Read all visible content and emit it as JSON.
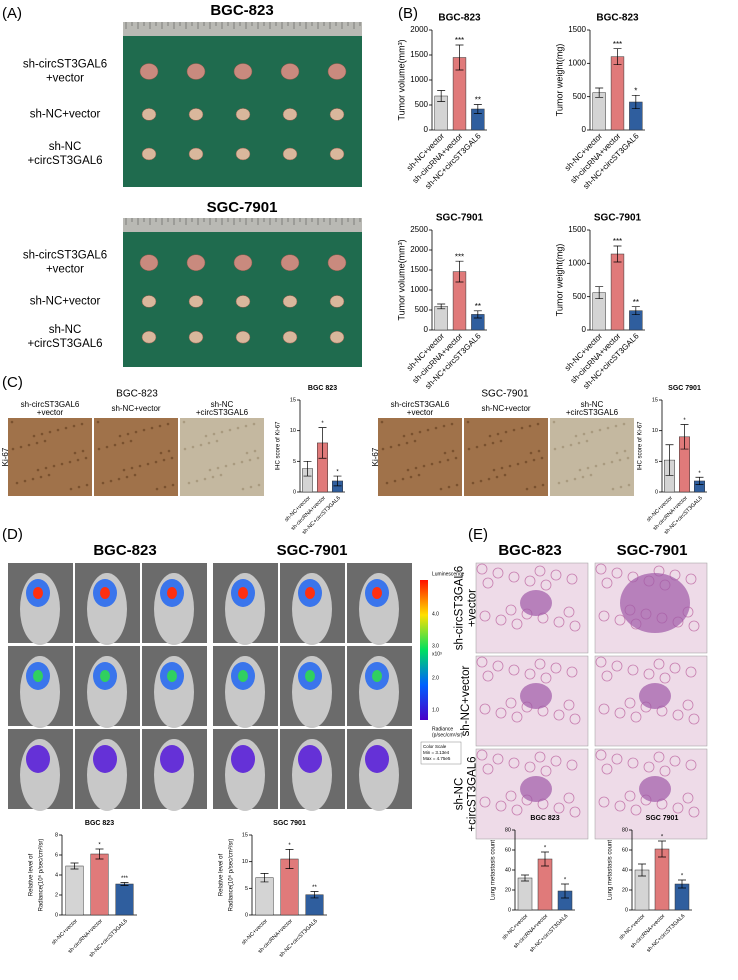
{
  "panel_labels": [
    "(A)",
    "(B)",
    "(C)",
    "(D)",
    "(E)"
  ],
  "panel_a": {
    "titles": [
      "BGC-823",
      "SGC-7901"
    ],
    "rows": [
      [
        "sh-circST3GAL6",
        "+vector"
      ],
      [
        "sh-NC+vector"
      ],
      [
        "sh-NC",
        "+circST3GAL6"
      ]
    ]
  },
  "panel_c": {
    "titles": [
      "BGC-823",
      "SGC-7901"
    ],
    "marker": "Ki-67",
    "columns": [
      [
        "sh-circST3GAL6",
        "+vector"
      ],
      [
        "sh-NC+vector"
      ],
      [
        "sh-NC",
        "+circST3GAL6"
      ]
    ]
  },
  "panel_d": {
    "titles": [
      "BGC-823",
      "SGC-7901"
    ],
    "colorbar_title": "Luminescence",
    "colorbar_unit": "x10³",
    "colorbar_ticks": [
      "1.0",
      "2.0",
      "3.0",
      "4.0"
    ],
    "radiance_label": [
      "Radiance",
      "(p/sec/cm²/sr)"
    ],
    "color_scale": [
      "Color Scale",
      "Min = 3.13e4",
      "Max = 4.75e5"
    ]
  },
  "panel_e": {
    "titles": [
      "BGC-823",
      "SGC-7901"
    ],
    "rows": [
      [
        "sh-circST3GAL6",
        "+vector"
      ],
      [
        "sh-NC+vector"
      ],
      [
        "sh-NC",
        "+circST3GAL6"
      ]
    ]
  },
  "chart_data": [
    {
      "type": "bar",
      "title": "BGC-823",
      "ylabel": [
        "Tumor volume(mm³)"
      ],
      "categories": [
        "sh-NC+vector",
        "sh-circRNA+vector",
        "sh-NC+circST3GAL6"
      ],
      "values": [
        680,
        1450,
        420
      ],
      "errors": [
        110,
        250,
        90
      ],
      "annotations": [
        null,
        "***",
        "**"
      ],
      "colors": [
        "#d4d4d4",
        "#e07a7a",
        "#2f5e9e"
      ],
      "ylim": [
        0,
        2000
      ],
      "yticks": [
        0,
        500,
        1000,
        1500,
        2000
      ]
    },
    {
      "type": "bar",
      "title": "BGC-823",
      "ylabel": [
        "Tumor weight(mg)"
      ],
      "categories": [
        "sh-NC+vector",
        "sh-circRNA+vector",
        "sh-NC+circST3GAL6"
      ],
      "values": [
        560,
        1100,
        420
      ],
      "errors": [
        70,
        120,
        100
      ],
      "annotations": [
        null,
        "***",
        "*"
      ],
      "colors": [
        "#d4d4d4",
        "#e07a7a",
        "#2f5e9e"
      ],
      "ylim": [
        0,
        1500
      ],
      "yticks": [
        0,
        500,
        1000,
        1500
      ]
    },
    {
      "type": "bar",
      "title": "SGC-7901",
      "ylabel": [
        "Tumor volume(mm³)"
      ],
      "categories": [
        "sh-NC+vector",
        "sh-circRNA+vector",
        "sh-NC+circST3GAL6"
      ],
      "values": [
        590,
        1460,
        390
      ],
      "errors": [
        60,
        260,
        90
      ],
      "annotations": [
        null,
        "***",
        "**"
      ],
      "colors": [
        "#d4d4d4",
        "#e07a7a",
        "#2f5e9e"
      ],
      "ylim": [
        0,
        2500
      ],
      "yticks": [
        0,
        500,
        1000,
        1500,
        2000,
        2500
      ]
    },
    {
      "type": "bar",
      "title": "SGC-7901",
      "ylabel": [
        "Tumor weight(mg)"
      ],
      "categories": [
        "sh-NC+vector",
        "sh-circRNA+vector",
        "sh-NC+circST3GAL6"
      ],
      "values": [
        560,
        1140,
        290
      ],
      "errors": [
        90,
        120,
        60
      ],
      "annotations": [
        null,
        "***",
        "**"
      ],
      "colors": [
        "#d4d4d4",
        "#e07a7a",
        "#2f5e9e"
      ],
      "ylim": [
        0,
        1500
      ],
      "yticks": [
        0,
        500,
        1000,
        1500
      ]
    },
    {
      "type": "bar",
      "title": "BGC 823",
      "ylabel": [
        "IHC score of Ki-67"
      ],
      "categories": [
        "sh-NC+vector",
        "sh-circRNA+vector",
        "sh-NC+circST3GAL6"
      ],
      "values": [
        3.8,
        8,
        1.8
      ],
      "errors": [
        1.2,
        2.5,
        0.8
      ],
      "annotations": [
        null,
        "*",
        "*"
      ],
      "colors": [
        "#d4d4d4",
        "#e07a7a",
        "#2f5e9e"
      ],
      "ylim": [
        0,
        15
      ],
      "yticks": [
        0,
        5,
        10,
        15
      ]
    },
    {
      "type": "bar",
      "title": "SGC 7901",
      "ylabel": [
        "IHC score of Ki-67"
      ],
      "categories": [
        "sh-NC+vector",
        "sh-circRNA+vector",
        "sh-NC+circST3GAL6"
      ],
      "values": [
        5.2,
        9,
        1.8
      ],
      "errors": [
        2.5,
        2,
        0.6
      ],
      "annotations": [
        null,
        "*",
        "*"
      ],
      "colors": [
        "#d4d4d4",
        "#e07a7a",
        "#2f5e9e"
      ],
      "ylim": [
        0,
        15
      ],
      "yticks": [
        0,
        5,
        10,
        15
      ]
    },
    {
      "type": "bar",
      "title": "BGC 823",
      "ylabel": [
        "Relative level of",
        "Radiance(10⁶ p/sec/cm²/sr)"
      ],
      "categories": [
        "sh-NC+vector",
        "sh-circRNA+vector",
        "sh-NC+circST3GAL6"
      ],
      "values": [
        4.9,
        6.1,
        3.1
      ],
      "errors": [
        0.3,
        0.5,
        0.15
      ],
      "annotations": [
        null,
        "*",
        "***"
      ],
      "colors": [
        "#d4d4d4",
        "#e07a7a",
        "#2f5e9e"
      ],
      "ylim": [
        0,
        8
      ],
      "yticks": [
        0,
        2,
        4,
        6,
        8
      ]
    },
    {
      "type": "bar",
      "title": "SGC 7901",
      "ylabel": [
        "Relative level of",
        "Radiance(10⁶ p/sec/cm²/sr)"
      ],
      "categories": [
        "sh-NC+vector",
        "sh-circRNA+vector",
        "sh-NC+circST3GAL6"
      ],
      "values": [
        7,
        10.5,
        3.8
      ],
      "errors": [
        0.8,
        1.8,
        0.6
      ],
      "annotations": [
        null,
        "*",
        "**"
      ],
      "colors": [
        "#d4d4d4",
        "#e07a7a",
        "#2f5e9e"
      ],
      "ylim": [
        0,
        15
      ],
      "yticks": [
        0,
        5,
        10,
        15
      ]
    },
    {
      "type": "bar",
      "title": "BGC 823",
      "ylabel": [
        "Lung metastasis count"
      ],
      "categories": [
        "sh-NC+vector",
        "sh-circRNA+vector",
        "sh-NC+circST3GAL6"
      ],
      "values": [
        32,
        51,
        19
      ],
      "errors": [
        3,
        7,
        7
      ],
      "annotations": [
        null,
        "*",
        "*"
      ],
      "colors": [
        "#d4d4d4",
        "#e07a7a",
        "#2f5e9e"
      ],
      "ylim": [
        0,
        80
      ],
      "yticks": [
        0,
        20,
        40,
        60,
        80
      ]
    },
    {
      "type": "bar",
      "title": "SGC 7901",
      "ylabel": [
        "Lung metastasis count"
      ],
      "categories": [
        "sh-NC+vector",
        "sh-circRNA+vector",
        "sh-NC+circST3GAL6"
      ],
      "values": [
        40,
        61,
        26
      ],
      "errors": [
        6,
        8,
        4
      ],
      "annotations": [
        null,
        "*",
        "*"
      ],
      "colors": [
        "#d4d4d4",
        "#e07a7a",
        "#2f5e9e"
      ],
      "ylim": [
        0,
        80
      ],
      "yticks": [
        0,
        20,
        40,
        60,
        80
      ]
    }
  ]
}
